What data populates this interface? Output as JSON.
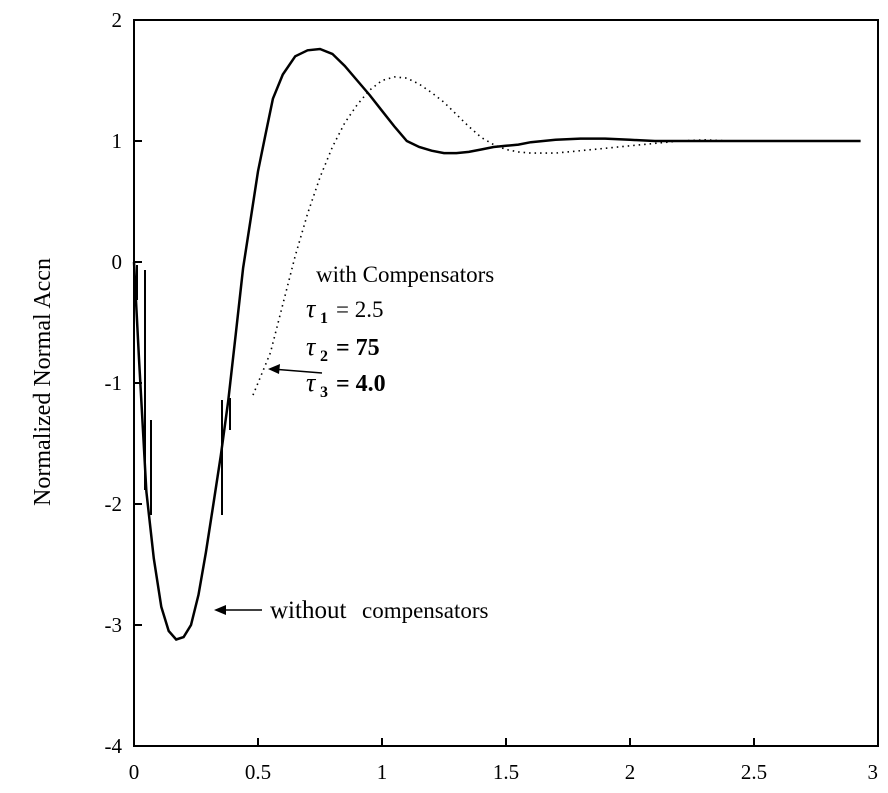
{
  "chart_data": {
    "type": "line",
    "title": "",
    "xlabel": "",
    "ylabel": "Normalized Normal Accn",
    "xlim": [
      0,
      3
    ],
    "ylim": [
      -4,
      2
    ],
    "x_ticks": [
      "0",
      "0.5",
      "1",
      "1.5",
      "2",
      "2.5",
      "3"
    ],
    "y_ticks": [
      "-4",
      "-3",
      "-2",
      "-1",
      "0",
      "1",
      "2"
    ],
    "grid": false,
    "legend": "none",
    "series": [
      {
        "style": "solid",
        "x": [
          0,
          0.02,
          0.05,
          0.08,
          0.11,
          0.14,
          0.17,
          0.2,
          0.23,
          0.26,
          0.29,
          0.32,
          0.35,
          0.38,
          0.41,
          0.44,
          0.47,
          0.5,
          0.53,
          0.56,
          0.6,
          0.65,
          0.7,
          0.75,
          0.8,
          0.85,
          0.9,
          0.95,
          1.0,
          1.05,
          1.1,
          1.15,
          1.2,
          1.25,
          1.3,
          1.35,
          1.4,
          1.45,
          1.5,
          1.55,
          1.6,
          1.65,
          1.7,
          1.8,
          1.9,
          2.0,
          2.1,
          2.2,
          2.3,
          2.4,
          2.5,
          2.6,
          2.7,
          2.8,
          2.93
        ],
        "y": [
          0,
          -0.8,
          -1.9,
          -2.45,
          -2.85,
          -3.05,
          -3.12,
          -3.1,
          -3.0,
          -2.75,
          -2.4,
          -2.0,
          -1.6,
          -1.15,
          -0.6,
          -0.05,
          0.35,
          0.75,
          1.05,
          1.35,
          1.55,
          1.7,
          1.75,
          1.76,
          1.72,
          1.62,
          1.5,
          1.38,
          1.25,
          1.12,
          1.0,
          0.95,
          0.92,
          0.9,
          0.9,
          0.91,
          0.93,
          0.95,
          0.96,
          0.97,
          0.99,
          1.0,
          1.01,
          1.02,
          1.02,
          1.01,
          1.0,
          1.0,
          1.0,
          1.0,
          1.0,
          1.0,
          1.0,
          1.0,
          1.0
        ]
      },
      {
        "style": "dotted",
        "x": [
          0.48,
          0.55,
          0.6,
          0.65,
          0.7,
          0.75,
          0.8,
          0.85,
          0.9,
          0.95,
          1.0,
          1.05,
          1.1,
          1.15,
          1.2,
          1.25,
          1.3,
          1.35,
          1.4,
          1.45,
          1.5,
          1.55,
          1.6,
          1.7,
          1.8,
          1.9,
          2.0,
          2.1,
          2.2,
          2.3,
          2.4,
          2.5,
          2.6,
          2.7,
          2.8,
          2.93
        ],
        "y": [
          -1.1,
          -0.75,
          -0.35,
          0.05,
          0.4,
          0.7,
          0.95,
          1.15,
          1.3,
          1.42,
          1.5,
          1.53,
          1.52,
          1.47,
          1.4,
          1.32,
          1.22,
          1.12,
          1.03,
          0.97,
          0.93,
          0.91,
          0.9,
          0.9,
          0.92,
          0.94,
          0.96,
          0.98,
          1.0,
          1.01,
          1.0,
          1.0,
          1.0,
          1.0,
          1.0,
          1.0
        ]
      }
    ],
    "annotations": {
      "with_label": "with Compensators",
      "tau1_label": "τ",
      "tau1_sub": "1",
      "tau1_value": "= 2.5",
      "tau2_label": "τ",
      "tau2_sub": "2",
      "tau2_value": "= 75",
      "tau3_label": "τ",
      "tau3_sub": "3",
      "tau3_value": "= 4.0",
      "without_label": "without",
      "without_label2": "compensators",
      "arrow_glyph": "←"
    }
  }
}
